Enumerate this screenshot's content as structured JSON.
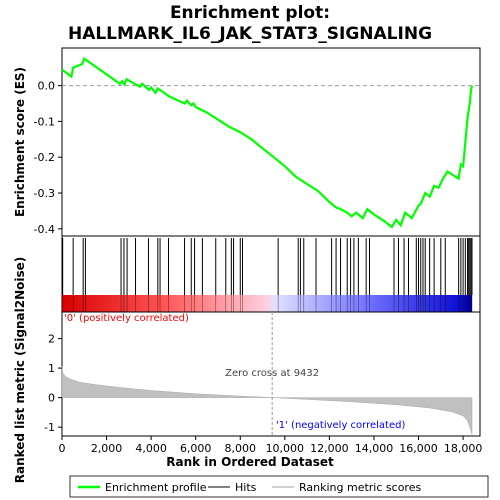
{
  "chart_data": {
    "type": "line",
    "title_line1": "Enrichment plot:",
    "title_line2": "HALLMARK_IL6_JAK_STAT3_SIGNALING",
    "es_panel": {
      "ylabel": "Enrichment score (ES)",
      "ylim": [
        -0.42,
        0.105
      ],
      "yticks": [
        0.0,
        -0.1,
        -0.2,
        -0.3,
        -0.4
      ],
      "ytick_labels": [
        "0.0",
        "-0.1",
        "-0.2",
        "-0.3",
        "-0.4"
      ],
      "series": [
        {
          "name": "Enrichment profile",
          "color": "#00ff00",
          "x": [
            0,
            420,
            500,
            900,
            1000,
            2600,
            2700,
            2800,
            2900,
            3000,
            3500,
            3600,
            3900,
            4000,
            4200,
            4300,
            4400,
            4700,
            4800,
            5500,
            5600,
            5800,
            5900,
            6000,
            6500,
            7000,
            7500,
            8000,
            8500,
            9000,
            9500,
            10000,
            10500,
            11000,
            11500,
            12000,
            12300,
            12500,
            12800,
            13000,
            13200,
            13500,
            13700,
            14000,
            14500,
            14800,
            15000,
            15200,
            15400,
            15700,
            16000,
            16100,
            16300,
            16500,
            16700,
            16900,
            17100,
            17300,
            17800,
            17900,
            18000,
            18100,
            18200,
            18300,
            18350,
            18400
          ],
          "y": [
            0.045,
            0.025,
            0.05,
            0.06,
            0.075,
            0.005,
            0.012,
            0.003,
            0.018,
            0.014,
            -0.003,
            0.005,
            -0.012,
            -0.005,
            -0.02,
            -0.008,
            -0.012,
            -0.025,
            -0.03,
            -0.05,
            -0.042,
            -0.055,
            -0.05,
            -0.06,
            -0.075,
            -0.095,
            -0.115,
            -0.13,
            -0.15,
            -0.175,
            -0.2,
            -0.225,
            -0.255,
            -0.275,
            -0.295,
            -0.325,
            -0.34,
            -0.345,
            -0.355,
            -0.365,
            -0.355,
            -0.37,
            -0.345,
            -0.36,
            -0.38,
            -0.395,
            -0.375,
            -0.39,
            -0.355,
            -0.37,
            -0.335,
            -0.33,
            -0.3,
            -0.31,
            -0.28,
            -0.285,
            -0.26,
            -0.24,
            -0.26,
            -0.22,
            -0.225,
            -0.16,
            -0.09,
            -0.05,
            -0.015,
            0.0
          ]
        }
      ]
    },
    "hits_panel": {
      "series_name": "Hits",
      "hit_positions": [
        30,
        500,
        950,
        1050,
        2650,
        2780,
        2920,
        3300,
        3880,
        4300,
        4400,
        4780,
        5500,
        5800,
        5950,
        6300,
        6900,
        7350,
        7600,
        7700,
        8000,
        8100,
        9700,
        10600,
        10700,
        10850,
        11400,
        12100,
        12300,
        12500,
        12800,
        12950,
        13100,
        13300,
        13650,
        13800,
        14900,
        15100,
        15350,
        15550,
        15900,
        16000,
        16100,
        16200,
        16300,
        16500,
        16700,
        17000,
        17200,
        17800,
        17900,
        18000,
        18100,
        18200,
        18250,
        18300,
        18350,
        18400
      ],
      "gradient_colors": [
        "#d80000",
        "#ff7777",
        "#ffffff",
        "#7777ff",
        "#0000d0"
      ]
    },
    "metric_panel": {
      "ylabel": "Ranked list metric (Signal2Noise)",
      "ylim": [
        -1.3,
        2.9
      ],
      "yticks": [
        2,
        1,
        0,
        -1
      ],
      "ytick_labels": [
        "2",
        "1",
        "0",
        "-1"
      ],
      "fill_color": "#c0c0c0",
      "series_name": "Ranking metric scores",
      "x": [
        0,
        50,
        150,
        400,
        800,
        1500,
        2500,
        4000,
        6000,
        8000,
        9432,
        11000,
        13000,
        15000,
        16500,
        17500,
        18000,
        18200,
        18300,
        18400
      ],
      "y": [
        1.05,
        0.82,
        0.72,
        0.62,
        0.52,
        0.44,
        0.35,
        0.24,
        0.13,
        0.05,
        0.0,
        -0.06,
        -0.14,
        -0.24,
        -0.35,
        -0.48,
        -0.62,
        -0.78,
        -1.0,
        -1.25
      ],
      "label_pos": "'0' (positively correlated)",
      "label_neg": "'1' (negatively correlated)",
      "label_zero": "Zero cross at 9432",
      "zero_cross": 9432,
      "pos_color": "#ff0000",
      "neg_color": "#0000ff"
    },
    "x_axis": {
      "label": "Rank in Ordered Dataset",
      "xlim": [
        0,
        18400
      ],
      "ticks": [
        0,
        2000,
        4000,
        6000,
        8000,
        10000,
        12000,
        14000,
        16000,
        18000
      ],
      "tick_labels": [
        "0",
        "2,000",
        "4,000",
        "6,000",
        "8,000",
        "10,000",
        "12,000",
        "14,000",
        "16,000",
        "18,000"
      ]
    },
    "legend": {
      "placement": "bottom",
      "entries": [
        {
          "label": "Enrichment profile",
          "color": "#00ff00"
        },
        {
          "label": "Hits",
          "color": "#000000"
        },
        {
          "label": "Ranking metric scores",
          "color": "#c0c0c0"
        }
      ]
    }
  }
}
